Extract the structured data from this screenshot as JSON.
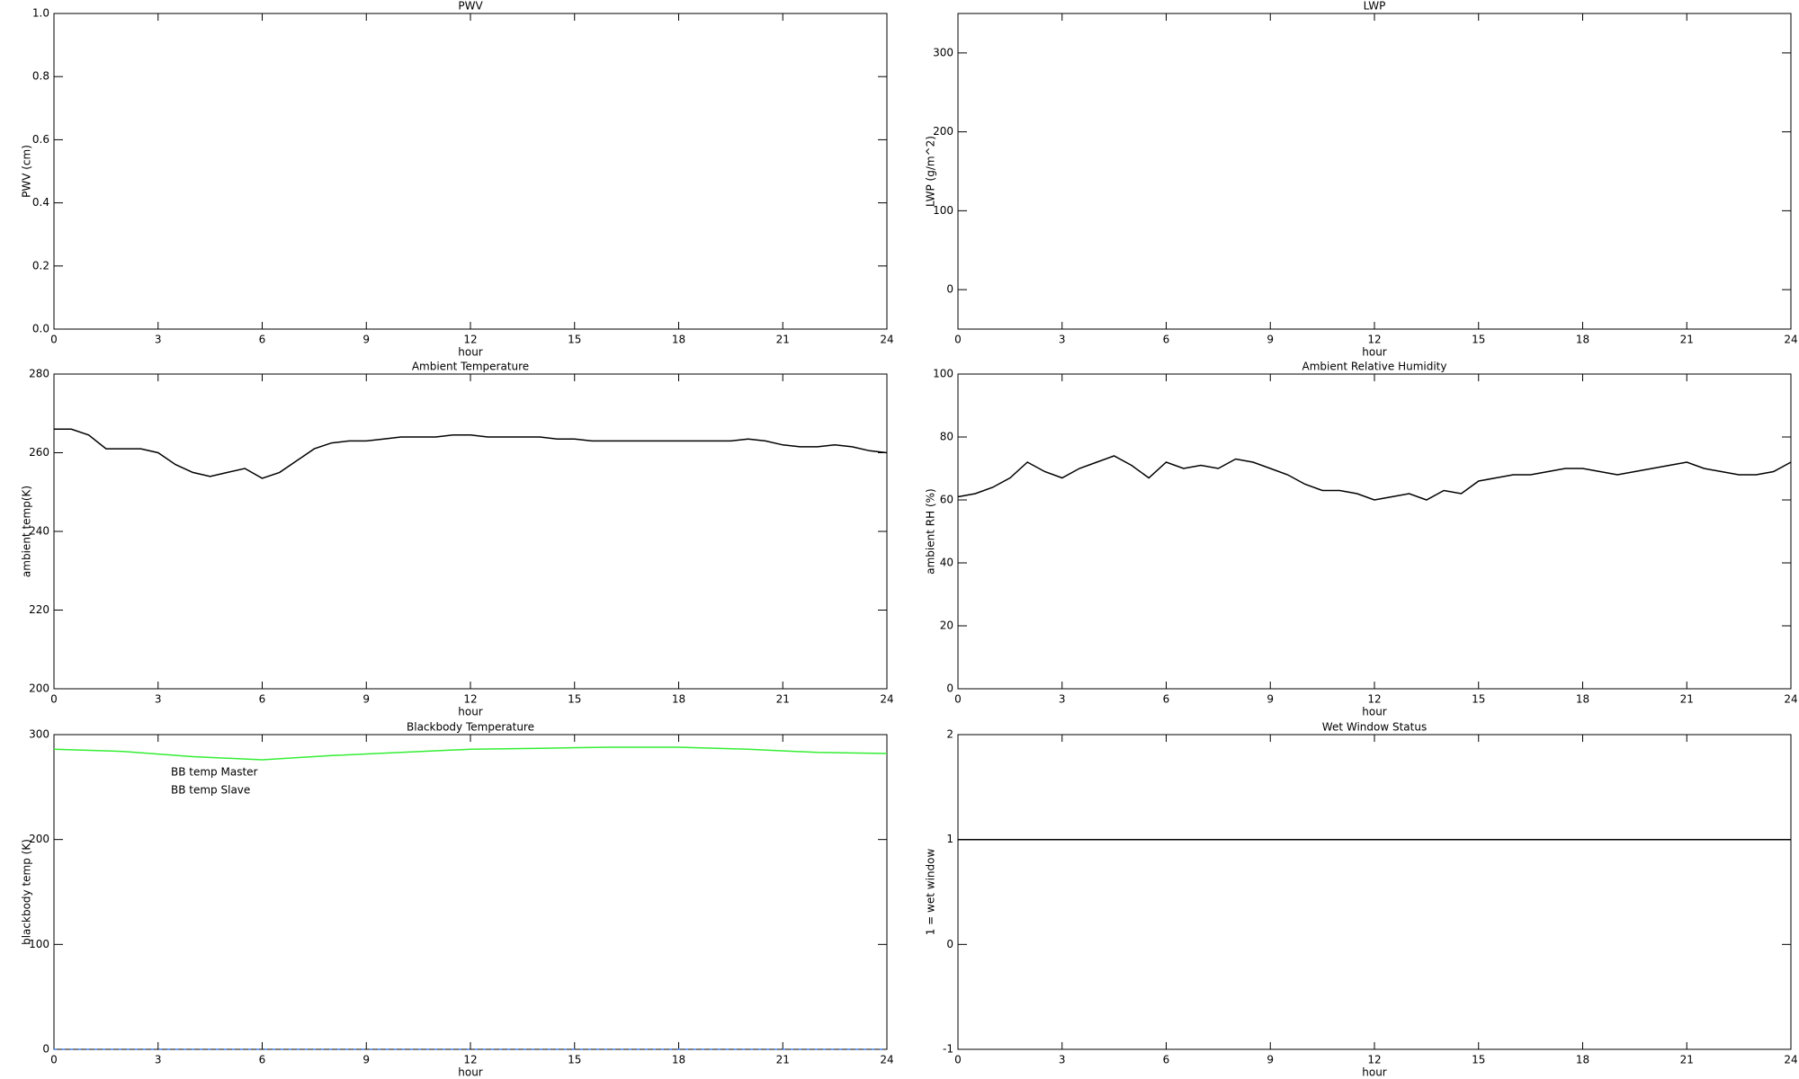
{
  "chart_data": [
    {
      "type": "line",
      "title": "PWV",
      "xlabel": "hour",
      "ylabel": "PWV (cm)",
      "xlim": [
        0,
        24
      ],
      "xticks": [
        0,
        3,
        6,
        9,
        12,
        15,
        18,
        21,
        24
      ],
      "ylim": [
        0,
        1
      ],
      "yticks": [
        {
          "value": 0,
          "label": "0.0"
        },
        0.2,
        0.4,
        0.6,
        0.8,
        {
          "value": 1,
          "label": "1.0"
        }
      ]
    },
    {
      "type": "line",
      "title": "LWP",
      "xlabel": "hour",
      "ylabel": "LWP (g/m^2)",
      "xlim": [
        0,
        24
      ],
      "xticks": [
        0,
        3,
        6,
        9,
        12,
        15,
        18,
        21,
        24
      ],
      "ylim": [
        -50,
        350
      ],
      "yticks": [
        0,
        100,
        200,
        300
      ]
    },
    {
      "type": "line",
      "title": "Ambient Temperature",
      "xlabel": "hour",
      "ylabel": "ambient temp(K)",
      "xlim": [
        0,
        24
      ],
      "xticks": [
        0,
        3,
        6,
        9,
        12,
        15,
        18,
        21,
        24
      ],
      "ylim": [
        200,
        280
      ],
      "yticks": [
        200,
        220,
        240,
        260,
        280
      ],
      "color": "#000000",
      "x": [
        0,
        0.5,
        1,
        1.5,
        2,
        2.5,
        3,
        3.5,
        4,
        4.5,
        5,
        5.5,
        6,
        6.5,
        7,
        7.5,
        8,
        8.5,
        9,
        9.5,
        10,
        10.5,
        11,
        11.5,
        12,
        12.5,
        13,
        13.5,
        14,
        14.5,
        15,
        15.5,
        16,
        16.5,
        17,
        17.5,
        18,
        18.5,
        19,
        19.5,
        20,
        20.5,
        21,
        21.5,
        22,
        22.5,
        23,
        23.5,
        24
      ],
      "values": [
        266,
        266,
        264.5,
        261,
        261,
        261,
        260,
        257,
        255,
        254,
        255,
        256,
        253.5,
        255,
        258,
        261,
        262.5,
        263,
        263,
        263.5,
        264,
        264,
        264,
        264.5,
        264.5,
        264,
        264,
        264,
        264,
        263.5,
        263.5,
        263,
        263,
        263,
        263,
        263,
        263,
        263,
        263,
        263,
        263.5,
        263,
        262,
        261.5,
        261.5,
        262,
        261.5,
        260.5,
        260
      ]
    },
    {
      "type": "line",
      "title": "Ambient Relative Humidity",
      "xlabel": "hour",
      "ylabel": "ambient RH (%)",
      "xlim": [
        0,
        24
      ],
      "xticks": [
        0,
        3,
        6,
        9,
        12,
        15,
        18,
        21,
        24
      ],
      "ylim": [
        0,
        100
      ],
      "yticks": [
        0,
        20,
        40,
        60,
        80,
        100
      ],
      "color": "#000000",
      "x": [
        0,
        0.5,
        1,
        1.5,
        2,
        2.5,
        3,
        3.5,
        4,
        4.5,
        5,
        5.5,
        6,
        6.5,
        7,
        7.5,
        8,
        8.5,
        9,
        9.5,
        10,
        10.5,
        11,
        11.5,
        12,
        12.5,
        13,
        13.5,
        14,
        14.5,
        15,
        15.5,
        16,
        16.5,
        17,
        17.5,
        18,
        18.5,
        19,
        19.5,
        20,
        20.5,
        21,
        21.5,
        22,
        22.5,
        23,
        23.5,
        24
      ],
      "values": [
        61,
        62,
        64,
        67,
        72,
        69,
        67,
        70,
        72,
        74,
        71,
        67,
        72,
        70,
        71,
        70,
        73,
        72,
        70,
        68,
        65,
        63,
        63,
        62,
        60,
        61,
        62,
        60,
        63,
        62,
        66,
        67,
        68,
        68,
        69,
        70,
        70,
        69,
        68,
        69,
        70,
        71,
        72,
        70,
        69,
        68,
        68,
        69,
        72
      ]
    },
    {
      "type": "line",
      "title": "Blackbody Temperature",
      "xlabel": "hour",
      "ylabel": "blackbody temp (K)",
      "xlim": [
        0,
        24
      ],
      "xticks": [
        0,
        3,
        6,
        9,
        12,
        15,
        18,
        21,
        24
      ],
      "ylim": [
        0,
        300
      ],
      "yticks": [
        0,
        100,
        200,
        300
      ],
      "legend": "upper left",
      "x": [
        0,
        2,
        4,
        6,
        8,
        10,
        12,
        14,
        16,
        18,
        20,
        22,
        24
      ],
      "series": [
        {
          "name": "BB temp Master",
          "color": "#3a7fff",
          "values": [
            0,
            0,
            0,
            0,
            0,
            0,
            0,
            0,
            0,
            0,
            0,
            0,
            0
          ]
        },
        {
          "name": "BB temp Slave",
          "color": "#33ee33",
          "values": [
            286,
            284,
            279,
            276,
            280,
            283,
            286,
            287,
            288,
            288,
            286,
            283,
            282
          ]
        }
      ]
    },
    {
      "type": "line",
      "title": "Wet Window Status",
      "xlabel": "hour",
      "ylabel": "1 = wet window",
      "xlim": [
        0,
        24
      ],
      "xticks": [
        0,
        3,
        6,
        9,
        12,
        15,
        18,
        21,
        24
      ],
      "ylim": [
        -1,
        2
      ],
      "yticks": [
        -1,
        0,
        1,
        2
      ],
      "color": "#000000",
      "x": [
        0,
        24
      ],
      "values": [
        1,
        1
      ]
    }
  ]
}
